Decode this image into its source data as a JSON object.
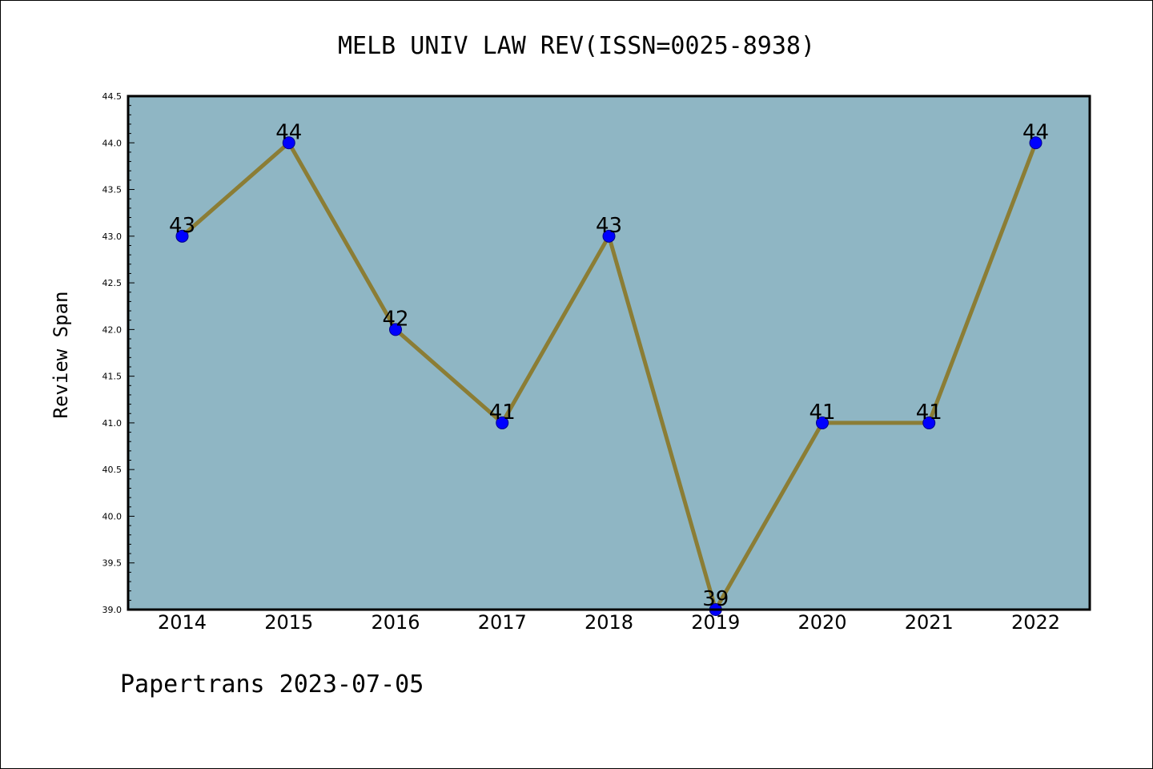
{
  "chart_data": {
    "type": "line",
    "title": "MELB UNIV LAW REV(ISSN=0025-8938)",
    "xlabel": "",
    "ylabel": "Review Span",
    "x": [
      "2014",
      "2015",
      "2016",
      "2017",
      "2018",
      "2019",
      "2020",
      "2021",
      "2022"
    ],
    "series": [
      {
        "values": [
          43,
          44,
          42,
          41,
          43,
          39,
          41,
          41,
          44
        ]
      }
    ],
    "ylim": [
      39.0,
      44.5
    ],
    "yticks": [
      "39.0",
      "39.5",
      "40.0",
      "40.5",
      "41.0",
      "41.5",
      "42.0",
      "42.5",
      "43.0",
      "43.5",
      "44.0",
      "44.5"
    ],
    "data_labels": [
      "43",
      "44",
      "42",
      "41",
      "43",
      "39",
      "41",
      "41",
      "44"
    ],
    "grid": false,
    "colors": {
      "plot_background": "#8fb6c4",
      "line": "#8b7d35",
      "marker": "#0000ff",
      "marker_edge": "#00008b"
    }
  },
  "footer": "Papertrans 2023-07-05"
}
